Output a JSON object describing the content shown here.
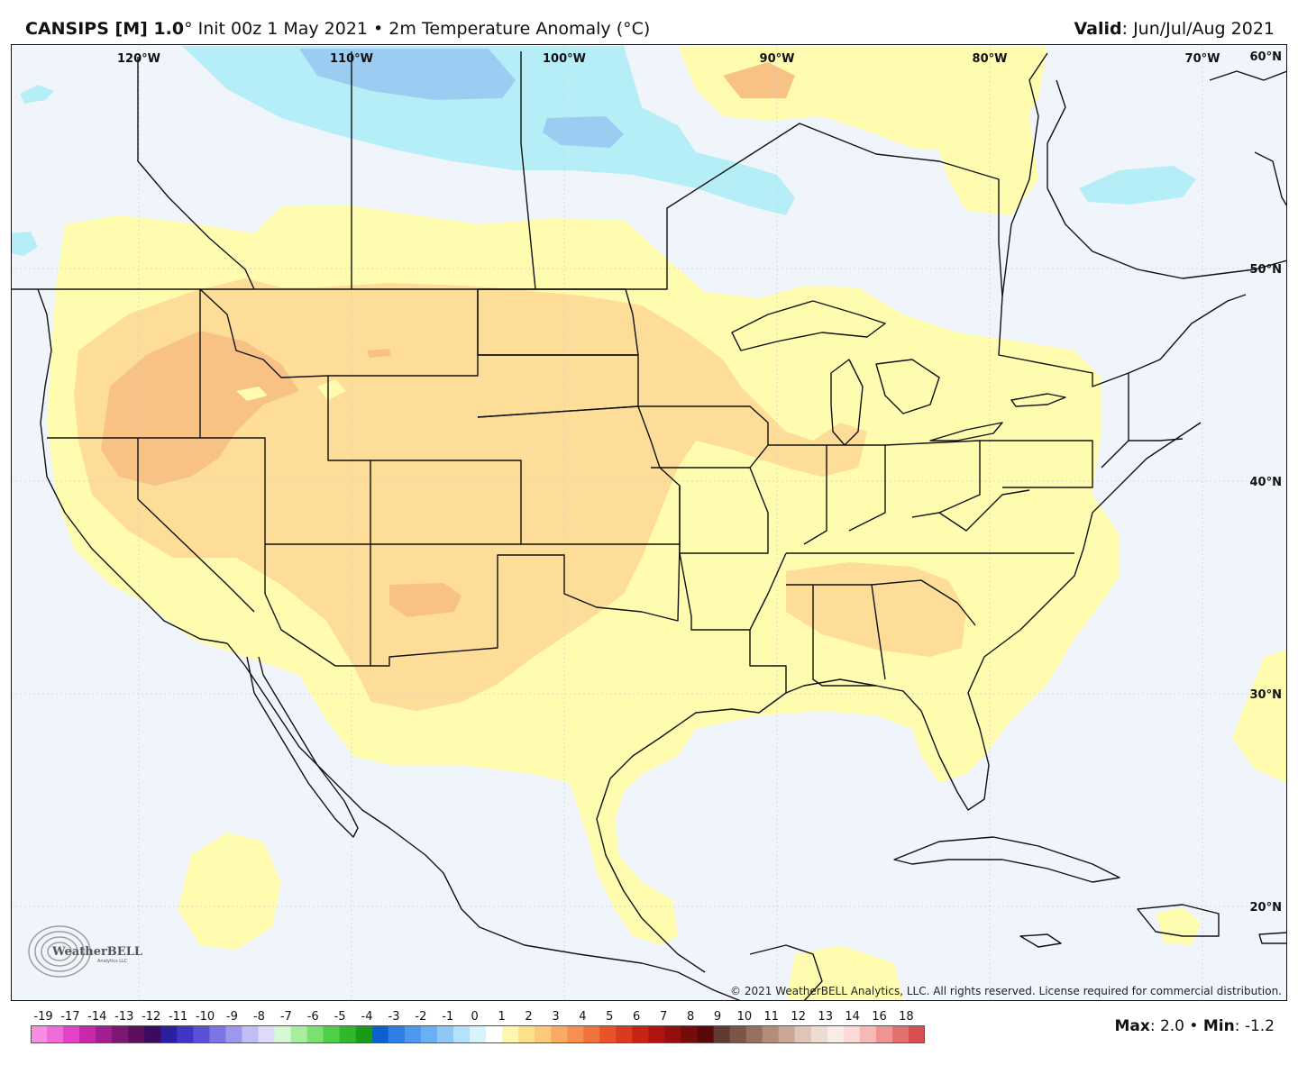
{
  "header": {
    "model": "CANSIPS [M] 1.0",
    "deg": "°",
    "init": " Init 00z 1 May 2021 • 2m Temperature Anomaly (°C)",
    "valid_label": "Valid",
    "valid_value": ": Jun/Jul/Aug 2021"
  },
  "map": {
    "type": "contour-map",
    "region": "Contiguous United States",
    "lon_labels": [
      "120°W",
      "110°W",
      "100°W",
      "90°W",
      "80°W",
      "70°W"
    ],
    "lat_labels": [
      "60°N",
      "50°N",
      "40°N",
      "30°N",
      "20°N"
    ],
    "copyright": "© 2021 WeatherBELL Analytics, LLC. All rights reserved. License required for commercial distribution.",
    "logo_text": "WeatherBELL",
    "logo_sub": "Analytics LLC",
    "colors": {
      "ocean": "#eef3fb",
      "neutral": "#f2f6fc",
      "anom_0_1": "#fffbb0",
      "anom_1_2": "#fddc96",
      "anom_2_3": "#f9c184",
      "anom_neg1_0": "#b4eef6",
      "anom_neg2_1": "#9ccdf2",
      "border": "#111111"
    }
  },
  "colorbar": {
    "tick_labels": [
      "-19",
      "-17",
      "-14",
      "-13",
      "-12",
      "-11",
      "-10",
      "-9",
      "-8",
      "-7",
      "-6",
      "-5",
      "-4",
      "-3",
      "-2",
      "-1",
      "0",
      "1",
      "2",
      "3",
      "4",
      "5",
      "6",
      "7",
      "8",
      "9",
      "10",
      "11",
      "12",
      "13",
      "14",
      "16",
      "18"
    ],
    "colors": [
      "#f58de0",
      "#ef6bd8",
      "#e441c8",
      "#c828ac",
      "#a31d92",
      "#7c1774",
      "#5b0f5a",
      "#3c0b5e",
      "#2a1f9e",
      "#3e35c4",
      "#5a52d6",
      "#7b74e4",
      "#9d98ee",
      "#c1bdf5",
      "#dfdcfb",
      "#d6f8d4",
      "#a7ee9f",
      "#7ae070",
      "#4fce48",
      "#2fb82c",
      "#1a9a1a",
      "#0e5fcf",
      "#2e7fe8",
      "#4c97f0",
      "#6cb0f4",
      "#8fc8f7",
      "#b4e2fb",
      "#d9f3fd",
      "#ffffff",
      "#fff7b0",
      "#fde08a",
      "#fcc879",
      "#f9ab62",
      "#f68f4f",
      "#f2723c",
      "#ea5329",
      "#dc3a1e",
      "#c72416",
      "#b01410",
      "#93100e",
      "#760b0b",
      "#5a0707",
      "#5f3b33",
      "#7c5448",
      "#98705f",
      "#b48c7a",
      "#cba796",
      "#dfc5b6",
      "#ecdcd1",
      "#f7ece6",
      "#fbdad8",
      "#f6b9b6",
      "#ee9591",
      "#e4706d",
      "#d8504e"
    ]
  },
  "stats": {
    "max_label": "Max",
    "max_value": ": 2.0 • ",
    "min_label": "Min",
    "min_value": ": -1.2"
  }
}
